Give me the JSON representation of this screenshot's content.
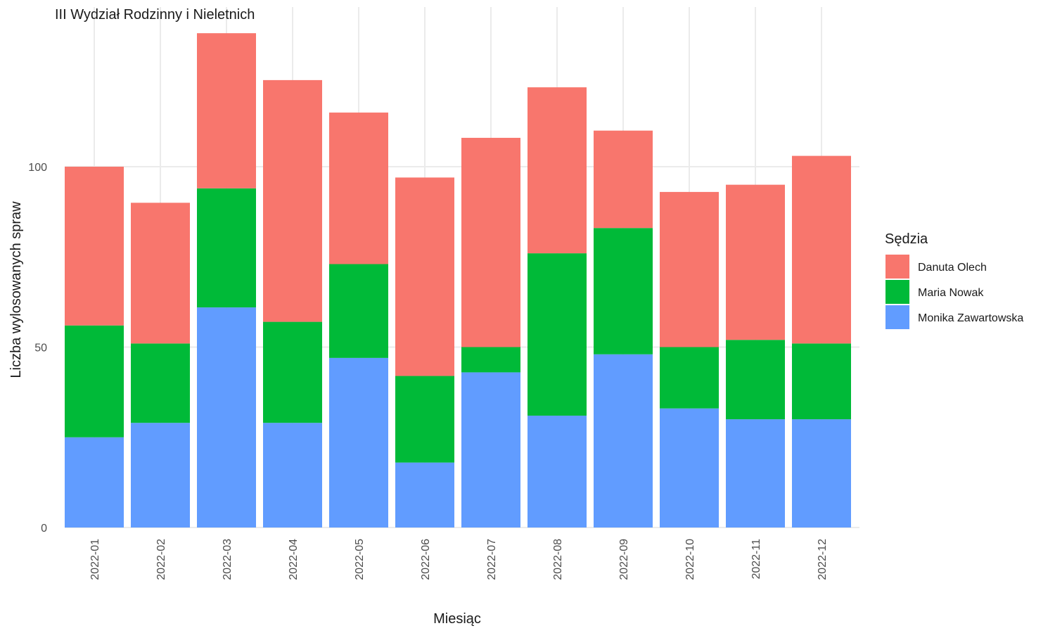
{
  "chart_data": {
    "type": "bar",
    "stacked": true,
    "title": "III Wydział Rodzinny i Nieletnich",
    "xlabel": "Miesiąc",
    "ylabel": "Liczba wylosowanych spraw",
    "ylim": [
      0,
      144
    ],
    "yticks": [
      0,
      50,
      100
    ],
    "grid": true,
    "legend_placement": "right",
    "legend_title": "Sędzia",
    "categories": [
      "2022-01",
      "2022-02",
      "2022-03",
      "2022-04",
      "2022-05",
      "2022-06",
      "2022-07",
      "2022-08",
      "2022-09",
      "2022-10",
      "2022-11",
      "2022-12"
    ],
    "series": [
      {
        "name": "Monika Zawartowska",
        "color": "#619CFF",
        "values": [
          25,
          29,
          61,
          29,
          47,
          18,
          43,
          31,
          48,
          33,
          30,
          30
        ]
      },
      {
        "name": "Maria Nowak",
        "color": "#00BA38",
        "values": [
          31,
          22,
          33,
          28,
          26,
          24,
          7,
          45,
          35,
          17,
          22,
          21
        ]
      },
      {
        "name": "Danuta Olech",
        "color": "#F8766D",
        "values": [
          44,
          39,
          43,
          67,
          42,
          55,
          58,
          46,
          27,
          43,
          43,
          52
        ]
      }
    ],
    "legend_order": [
      "Danuta Olech",
      "Maria Nowak",
      "Monika Zawartowska"
    ]
  }
}
